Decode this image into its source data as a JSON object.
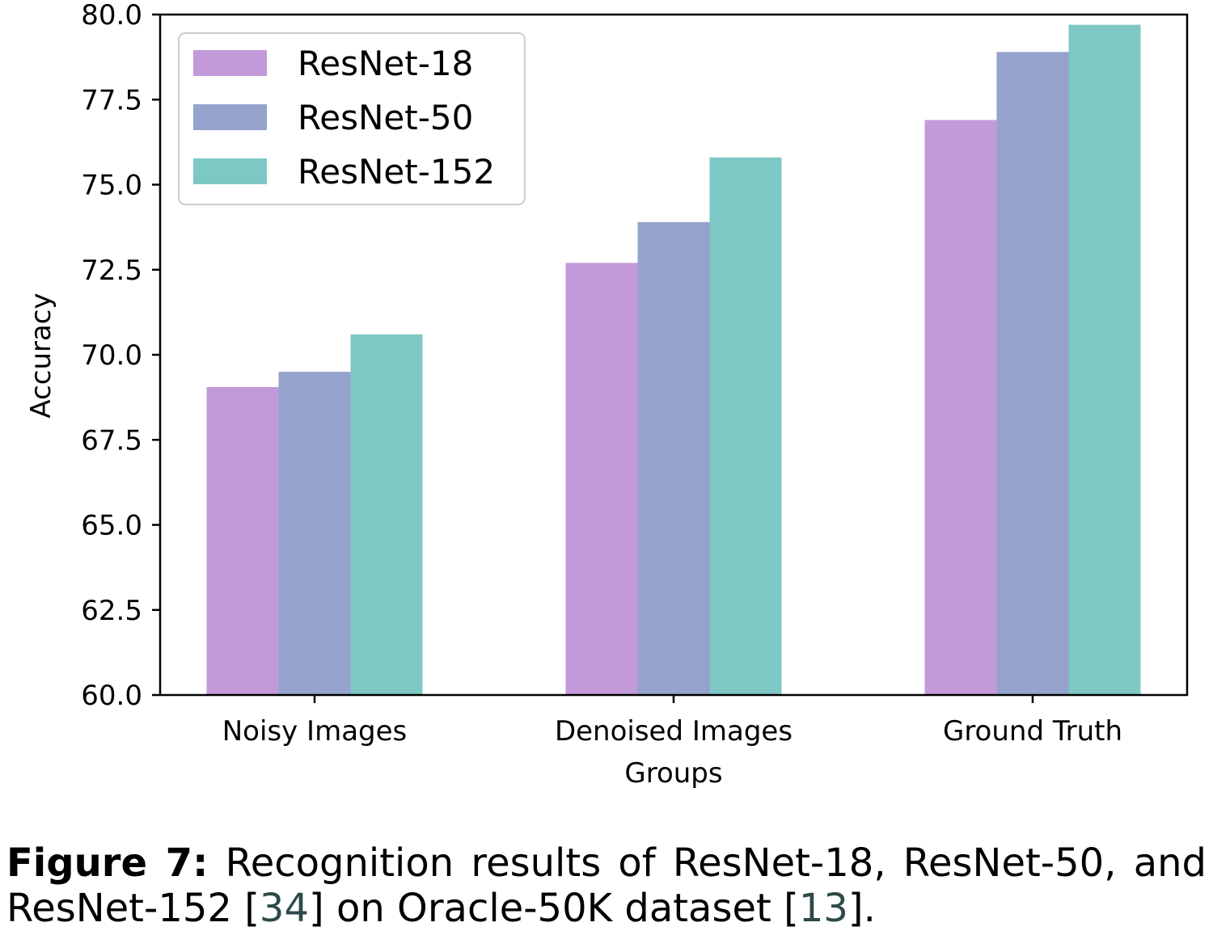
{
  "chart_data": {
    "type": "bar",
    "categories": [
      "Noisy Images",
      "Denoised Images",
      "Ground Truth"
    ],
    "series": [
      {
        "name": "ResNet-18",
        "color": "#c29ad9",
        "values": [
          69.05,
          72.7,
          76.9
        ]
      },
      {
        "name": "ResNet-50",
        "color": "#95a2cc",
        "values": [
          69.5,
          73.9,
          78.9
        ]
      },
      {
        "name": "ResNet-152",
        "color": "#7dc7c4",
        "values": [
          70.6,
          75.8,
          79.7
        ]
      }
    ],
    "xlabel": "Groups",
    "ylabel": "Accuracy",
    "ylim": [
      60.0,
      80.0
    ],
    "yticks": [
      "60.0",
      "62.5",
      "65.0",
      "67.5",
      "70.0",
      "72.5",
      "75.0",
      "77.5",
      "80.0"
    ],
    "grid": false,
    "legend_position": "top-left"
  },
  "caption": {
    "label": "Figure 7:",
    "text_1": " Recognition results of ResNet-18, ResNet-50, and ResNet-152 [",
    "ref_1": "34",
    "text_2": "] on Oracle-50K dataset [",
    "ref_2": "13",
    "text_3": "]."
  }
}
